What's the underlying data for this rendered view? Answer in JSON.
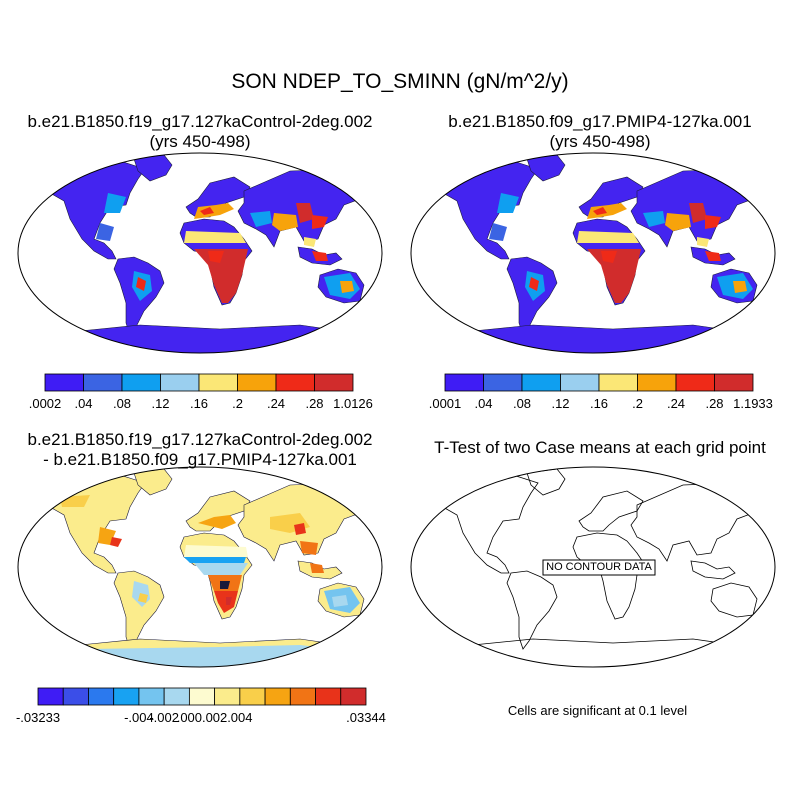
{
  "main_title": "SON NDEP_TO_SMINN (gN/m^2/y)",
  "panels": [
    {
      "title_line1": "b.e21.B1850.f19_g17.127kaControl-2deg.002",
      "title_line2": "(yrs 450-498)",
      "colorbar": {
        "colors": [
          "#3f1cf5",
          "#3b64e3",
          "#0f9ff0",
          "#9acfef",
          "#fbe776",
          "#f7a30b",
          "#ef2a18",
          "#d12c2c"
        ],
        "labels": [
          ".0002",
          ".04",
          ".08",
          ".12",
          ".16",
          ".2",
          ".24",
          ".28",
          "1.0126"
        ]
      }
    },
    {
      "title_line1": "b.e21.B1850.f09_g17.PMIP4-127ka.001",
      "title_line2": "(yrs 450-498)",
      "colorbar": {
        "colors": [
          "#3f1cf5",
          "#3b64e3",
          "#0f9ff0",
          "#9acfef",
          "#fbe776",
          "#f7a30b",
          "#ef2a18",
          "#d12c2c"
        ],
        "labels": [
          ".0001",
          ".04",
          ".08",
          ".12",
          ".16",
          ".2",
          ".24",
          ".28",
          "1.1933"
        ]
      }
    },
    {
      "title_line1": "b.e21.B1850.f19_g17.127kaControl-2deg.002",
      "title_line2": "- b.e21.B1850.f09_g17.PMIP4-127ka.001",
      "colorbar": {
        "colors": [
          "#3f1cf5",
          "#3b4ee8",
          "#2b79ee",
          "#18a2f2",
          "#74c4ef",
          "#a8d8ef",
          "#fdfbd0",
          "#fbec8c",
          "#f9cf4a",
          "#f6a412",
          "#f17415",
          "#e8331a",
          "#d12c2c"
        ],
        "labels": [
          "-.03233",
          "-.004",
          "-.002",
          ".000",
          ".002",
          ".004",
          ".03344"
        ]
      }
    },
    {
      "title_line1": "T-Test of two Case means at each grid point",
      "no_data_label": "NO CONTOUR DATA",
      "footnote": "Cells are significant at 0.1 level"
    }
  ]
}
